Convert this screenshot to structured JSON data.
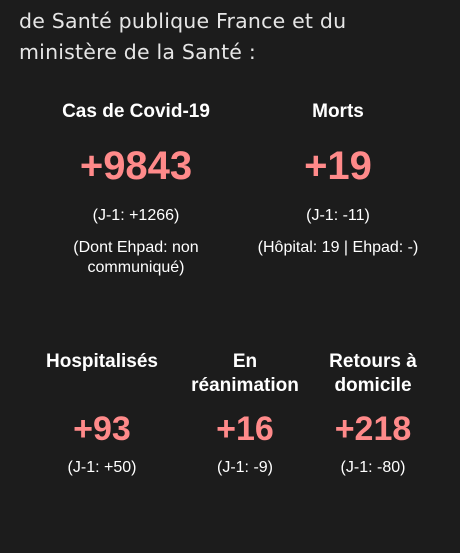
{
  "intro": "de Santé publique France et du ministère de la Santé :",
  "stats": {
    "cas": {
      "label": "Cas de Covid-19",
      "value": "+9843",
      "delta": "(J-1: +1266)",
      "note": "(Dont Ehpad: non communiqué)"
    },
    "morts": {
      "label": "Morts",
      "value": "+19",
      "delta": "(J-1: -11)",
      "note": "(Hôpital: 19 | Ehpad: -)"
    },
    "hospitalises": {
      "label": "Hospitalisés",
      "value": "+93",
      "delta": "(J-1: +50)"
    },
    "reanimation": {
      "label": "En réanimation",
      "value": "+16",
      "delta": "(J-1: -9)"
    },
    "retours": {
      "label": "Retours à domicile",
      "value": "+218",
      "delta": "(J-1: -80)"
    }
  },
  "colors": {
    "background": "#1c1c1c",
    "value_accent": "#ff8a8a",
    "text": "#ffffff"
  }
}
